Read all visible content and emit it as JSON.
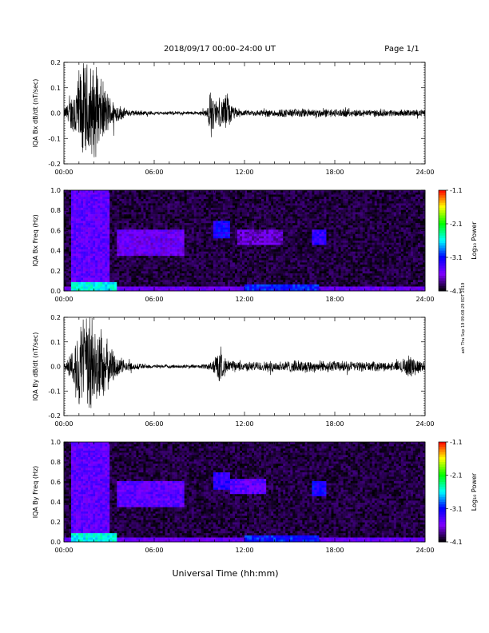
{
  "header": {
    "title": "2018/09/17  00:00–24:00 UT",
    "page": "Page 1/1"
  },
  "side_note": "ash Thu Sep 19 09:08:29 EDT 2019",
  "xaxis": {
    "label": "Universal Time (hh:mm)",
    "ticks": [
      "00:00",
      "06:00",
      "12:00",
      "18:00",
      "24:00"
    ]
  },
  "colorbar": {
    "label": "Log₁₀ Power",
    "ticks": [
      "-1.1",
      "-2.1",
      "-3.1",
      "-4.1"
    ],
    "colors": [
      "#ff0000",
      "#ffff00",
      "#00ff00",
      "#00ffff",
      "#0000ff",
      "#8000ff",
      "#000000"
    ]
  },
  "chart_data": [
    {
      "type": "line",
      "ylabel": "IQA Bx dB/dt (nT/sec)",
      "xlim": [
        0,
        24
      ],
      "ylim": [
        -0.2,
        0.2
      ],
      "yticks": [
        "0.2",
        "0.1",
        "0.0",
        "-0.1",
        "-0.2"
      ],
      "xticks": [
        "00:00",
        "06:00",
        "12:00",
        "18:00",
        "24:00"
      ],
      "amplitude_envelope": [
        [
          0,
          0.02
        ],
        [
          0.4,
          0.06
        ],
        [
          0.8,
          0.16
        ],
        [
          1.2,
          0.22
        ],
        [
          1.8,
          0.22
        ],
        [
          2.4,
          0.16
        ],
        [
          3.0,
          0.08
        ],
        [
          3.6,
          0.04
        ],
        [
          4.2,
          0.015
        ],
        [
          6.0,
          0.008
        ],
        [
          9.0,
          0.008
        ],
        [
          9.5,
          0.02
        ],
        [
          9.8,
          0.12
        ],
        [
          10.0,
          0.06
        ],
        [
          10.5,
          0.06
        ],
        [
          10.8,
          0.1
        ],
        [
          11.2,
          0.03
        ],
        [
          12.0,
          0.012
        ],
        [
          14.0,
          0.018
        ],
        [
          16.0,
          0.02
        ],
        [
          18.0,
          0.018
        ],
        [
          20.0,
          0.016
        ],
        [
          22.0,
          0.015
        ],
        [
          24.0,
          0.015
        ]
      ]
    },
    {
      "type": "heatmap",
      "ylabel": "IQA Bx Freq (Hz)",
      "xlim": [
        0,
        24
      ],
      "ylim": [
        0,
        1.0
      ],
      "yticks": [
        "1.0",
        "0.8",
        "0.6",
        "0.4",
        "0.2",
        "0.0"
      ],
      "xticks": [
        "00:00",
        "06:00",
        "12:00",
        "18:00",
        "24:00"
      ],
      "zlim": [
        -4.1,
        -1.1
      ],
      "features": [
        {
          "t0": 0.5,
          "t1": 3.0,
          "f0": 0.0,
          "f1": 1.0,
          "level": -3.3
        },
        {
          "t0": 0.5,
          "t1": 3.5,
          "f0": 0.0,
          "f1": 0.08,
          "level": -2.4
        },
        {
          "t0": 3.5,
          "t1": 8.0,
          "f0": 0.35,
          "f1": 0.6,
          "level": -3.4
        },
        {
          "t0": 10.0,
          "t1": 11.0,
          "f0": 0.52,
          "f1": 0.7,
          "level": -3.0
        },
        {
          "t0": 11.5,
          "t1": 14.5,
          "f0": 0.45,
          "f1": 0.6,
          "level": -3.5
        },
        {
          "t0": 16.5,
          "t1": 17.5,
          "f0": 0.45,
          "f1": 0.6,
          "level": -3.1
        },
        {
          "t0": 12.0,
          "t1": 17.0,
          "f0": 0.0,
          "f1": 0.06,
          "level": -2.9
        }
      ]
    },
    {
      "type": "line",
      "ylabel": "IQA By dB/dt (nT/sec)",
      "xlim": [
        0,
        24
      ],
      "ylim": [
        -0.2,
        0.2
      ],
      "yticks": [
        "0.2",
        "0.1",
        "0.0",
        "-0.1",
        "-0.2"
      ],
      "xticks": [
        "00:00",
        "06:00",
        "12:00",
        "18:00",
        "24:00"
      ],
      "amplitude_envelope": [
        [
          0,
          0.02
        ],
        [
          0.4,
          0.05
        ],
        [
          0.8,
          0.14
        ],
        [
          1.2,
          0.22
        ],
        [
          1.8,
          0.24
        ],
        [
          2.4,
          0.18
        ],
        [
          3.0,
          0.1
        ],
        [
          3.6,
          0.05
        ],
        [
          4.2,
          0.02
        ],
        [
          6.0,
          0.008
        ],
        [
          9.0,
          0.008
        ],
        [
          9.8,
          0.02
        ],
        [
          10.3,
          0.08
        ],
        [
          10.8,
          0.03
        ],
        [
          12.0,
          0.02
        ],
        [
          14.0,
          0.025
        ],
        [
          16.0,
          0.028
        ],
        [
          18.0,
          0.025
        ],
        [
          20.0,
          0.022
        ],
        [
          22.0,
          0.02
        ],
        [
          23.0,
          0.05
        ],
        [
          24.0,
          0.02
        ]
      ]
    },
    {
      "type": "heatmap",
      "ylabel": "IQA By Freq (Hz)",
      "xlim": [
        0,
        24
      ],
      "ylim": [
        0,
        1.0
      ],
      "yticks": [
        "1.0",
        "0.8",
        "0.6",
        "0.4",
        "0.2",
        "0.0"
      ],
      "xticks": [
        "00:00",
        "06:00",
        "12:00",
        "18:00",
        "24:00"
      ],
      "zlim": [
        -4.1,
        -1.1
      ],
      "features": [
        {
          "t0": 0.5,
          "t1": 3.0,
          "f0": 0.0,
          "f1": 1.0,
          "level": -3.3
        },
        {
          "t0": 0.5,
          "t1": 3.5,
          "f0": 0.0,
          "f1": 0.08,
          "level": -2.4
        },
        {
          "t0": 3.5,
          "t1": 8.0,
          "f0": 0.35,
          "f1": 0.6,
          "level": -3.3
        },
        {
          "t0": 10.0,
          "t1": 11.0,
          "f0": 0.52,
          "f1": 0.7,
          "level": -3.1
        },
        {
          "t0": 11.0,
          "t1": 13.5,
          "f0": 0.48,
          "f1": 0.62,
          "level": -3.3
        },
        {
          "t0": 16.5,
          "t1": 17.5,
          "f0": 0.45,
          "f1": 0.6,
          "level": -3.0
        },
        {
          "t0": 12.0,
          "t1": 17.0,
          "f0": 0.0,
          "f1": 0.06,
          "level": -2.9
        }
      ]
    }
  ]
}
